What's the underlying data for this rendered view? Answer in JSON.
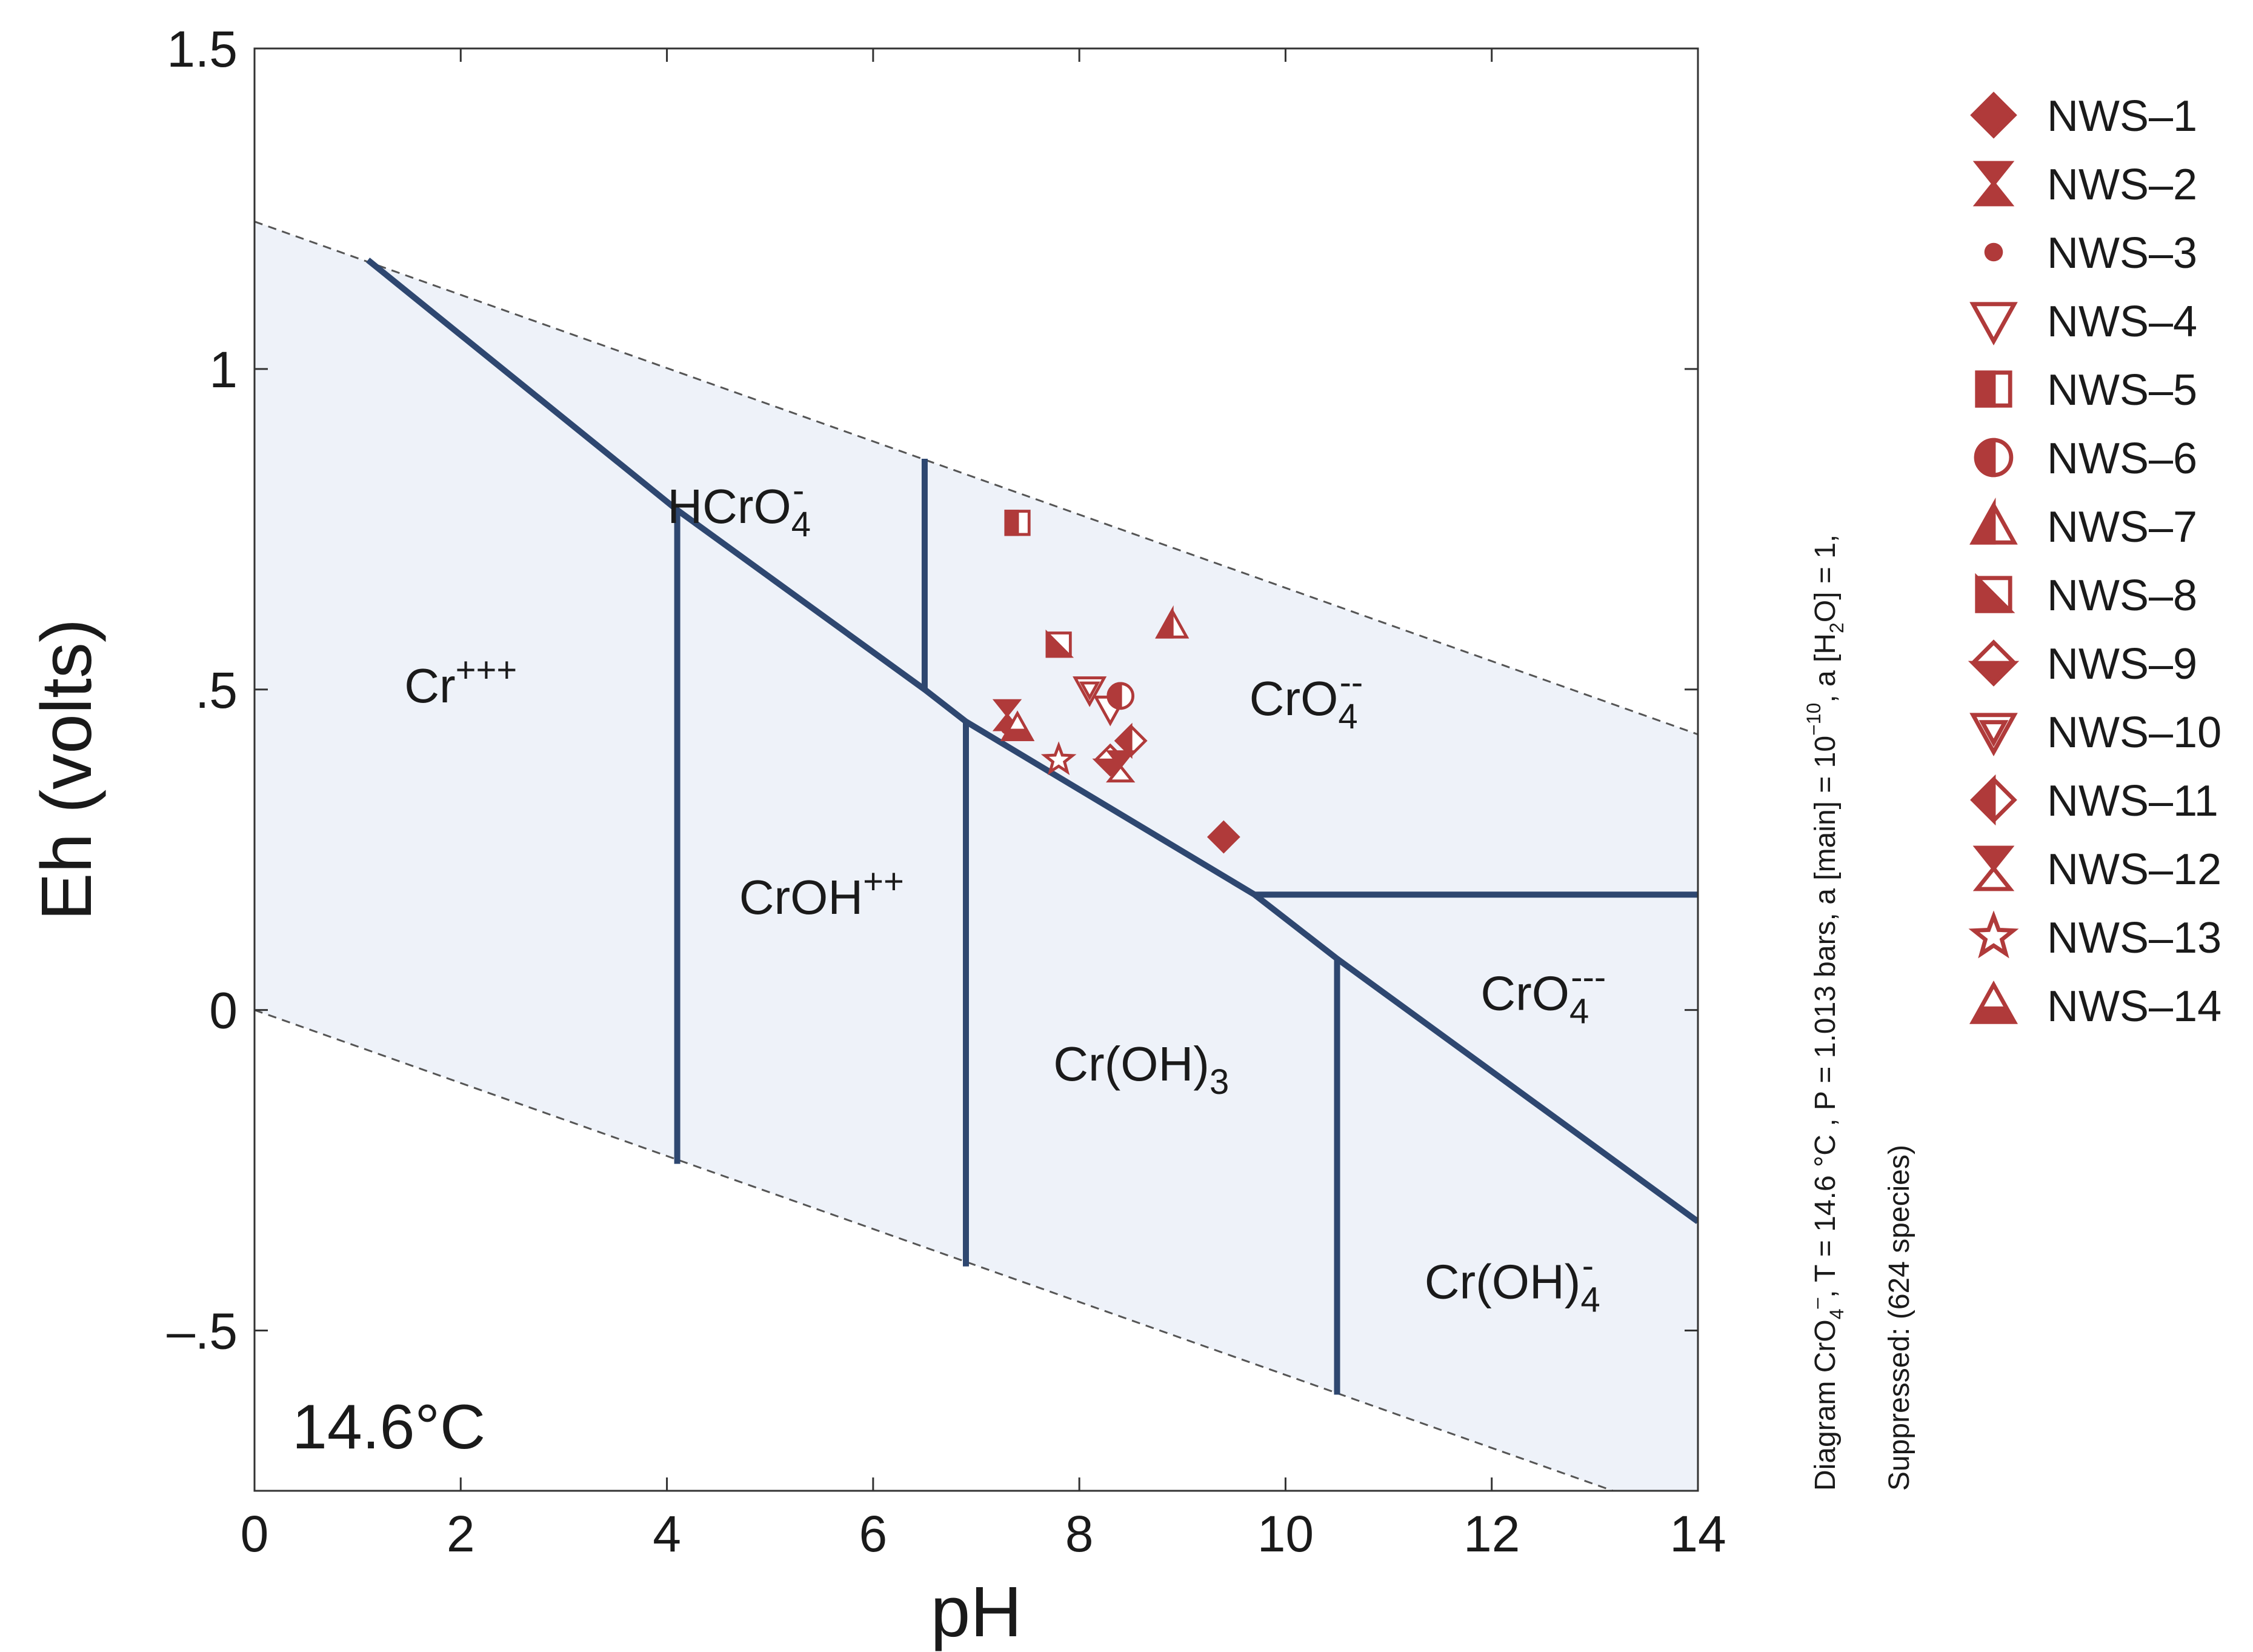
{
  "chart_data": {
    "type": "scatter",
    "title": "",
    "xlabel": "pH",
    "ylabel": "Eh (volts)",
    "xlim": [
      0,
      14
    ],
    "ylim": [
      -0.75,
      1.5
    ],
    "x_ticks": [
      0,
      2,
      4,
      6,
      8,
      10,
      12,
      14
    ],
    "x_tick_labels": [
      "0",
      "2",
      "4",
      "6",
      "8",
      "10",
      "12",
      "14"
    ],
    "y_ticks": [
      1.5,
      1,
      0.5,
      0,
      -0.5
    ],
    "y_tick_labels": [
      "1.5",
      "1",
      ".5",
      "0",
      "–.5"
    ],
    "grid": false,
    "temperature_label": "14.6°C",
    "water_stability_limits": [
      {
        "line": "upper",
        "points": [
          [
            0,
            1.23
          ],
          [
            14,
            0.43
          ]
        ]
      },
      {
        "line": "lower",
        "points": [
          [
            0,
            0.0
          ],
          [
            13,
            -0.74
          ]
        ]
      }
    ],
    "boundaries": [
      {
        "points": [
          [
            1.1,
            1.17
          ],
          [
            4.1,
            0.78
          ],
          [
            6.5,
            0.5
          ],
          [
            6.9,
            0.45
          ],
          [
            9.7,
            0.18
          ],
          [
            10.5,
            0.08
          ],
          [
            14,
            -0.33
          ]
        ]
      },
      {
        "points": [
          [
            4.1,
            0.78
          ],
          [
            4.1,
            -0.24
          ]
        ]
      },
      {
        "points": [
          [
            6.5,
            0.5
          ],
          [
            6.5,
            0.86
          ]
        ]
      },
      {
        "points": [
          [
            6.9,
            0.45
          ],
          [
            6.9,
            -0.4
          ]
        ]
      },
      {
        "points": [
          [
            9.7,
            0.18
          ],
          [
            14,
            0.18
          ]
        ]
      },
      {
        "points": [
          [
            10.5,
            0.08
          ],
          [
            10.5,
            -0.6
          ]
        ]
      }
    ],
    "fields": [
      {
        "base": "Cr",
        "sup": "+++",
        "sub": "",
        "pre": "",
        "x": 2.0,
        "y": 0.48
      },
      {
        "base": "HCrO",
        "sub": "4",
        "sup": "-",
        "pre": "",
        "x": 4.7,
        "y": 0.76
      },
      {
        "base": "CrOH",
        "sup": "++",
        "sub": "",
        "pre": "",
        "x": 5.5,
        "y": 0.15
      },
      {
        "base": "CrO",
        "sub": "4",
        "sup": "--",
        "pre": "",
        "x": 10.2,
        "y": 0.46
      },
      {
        "base": "Cr(OH)",
        "sub": "3",
        "sup": "",
        "pre": "",
        "x": 8.6,
        "y": -0.11
      },
      {
        "base": "CrO",
        "sub": "4",
        "sup": "---",
        "pre": "",
        "x": 12.5,
        "y": 0.0
      },
      {
        "base": "Cr(OH)",
        "sub": "4",
        "sup": "-",
        "pre": "",
        "x": 12.2,
        "y": -0.45
      }
    ],
    "series": [
      {
        "name": "NWS–1",
        "marker": "diamond-filled",
        "x": [
          9.4
        ],
        "y": [
          0.27
        ]
      },
      {
        "name": "NWS–2",
        "marker": "hourglass-filled",
        "x": [
          7.3
        ],
        "y": [
          0.46
        ]
      },
      {
        "name": "NWS–3",
        "marker": "dot",
        "x": [
          7.3
        ],
        "y": [
          0.44
        ]
      },
      {
        "name": "NWS–4",
        "marker": "triangle-down-open",
        "x": [
          8.3
        ],
        "y": [
          0.47
        ]
      },
      {
        "name": "NWS–5",
        "marker": "square-half-left",
        "x": [
          7.4
        ],
        "y": [
          0.76
        ]
      },
      {
        "name": "NWS–6",
        "marker": "circle-half-left",
        "x": [
          8.4
        ],
        "y": [
          0.49
        ]
      },
      {
        "name": "NWS–7",
        "marker": "triangle-up-half",
        "x": [
          8.9
        ],
        "y": [
          0.6
        ]
      },
      {
        "name": "NWS–8",
        "marker": "square-diagonal",
        "x": [
          7.8
        ],
        "y": [
          0.57
        ]
      },
      {
        "name": "NWS–9",
        "marker": "diamond-bottom-half",
        "x": [
          8.3
        ],
        "y": [
          0.39
        ]
      },
      {
        "name": "NWS–10",
        "marker": "triangle-down-thick",
        "x": [
          8.1
        ],
        "y": [
          0.5
        ]
      },
      {
        "name": "NWS–11",
        "marker": "diamond-half-left",
        "x": [
          8.5
        ],
        "y": [
          0.42
        ]
      },
      {
        "name": "NWS–12",
        "marker": "hourglass-open",
        "x": [
          8.4
        ],
        "y": [
          0.38
        ]
      },
      {
        "name": "NWS–13",
        "marker": "star-open",
        "x": [
          7.8
        ],
        "y": [
          0.39
        ]
      },
      {
        "name": "NWS–14",
        "marker": "triangle-up-barred",
        "x": [
          7.4
        ],
        "y": [
          0.44
        ]
      }
    ],
    "marker_color": "#b03a3a",
    "boundary_color": "#2e4770",
    "field_fill": "#eef2f9"
  },
  "side_text": {
    "line1": {
      "prefix": "Diagram CrO",
      "sub": "4",
      "sup": "–",
      "rest1": ", T  =  14.6 °C , P  =  1.013 bars, a [main]  =  10",
      "exp": "−10",
      "rest2": ", a [H",
      "sub2": "2",
      "rest3": "O]  =  1,"
    },
    "line2": "Suppressed:  (624 species)"
  }
}
